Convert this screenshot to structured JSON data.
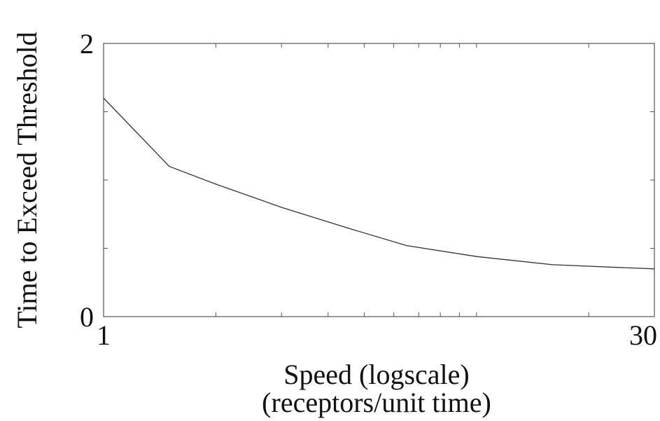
{
  "chart_data": {
    "type": "line",
    "title": "",
    "xlabel_lines": [
      "Speed (logscale)",
      "(receptors/unit time)"
    ],
    "ylabel": "Time to Exceed Threshold",
    "x_scale": "log",
    "xlim": [
      1,
      30
    ],
    "ylim": [
      0,
      2
    ],
    "x_tick_labels": [
      {
        "value": 1,
        "label": "1"
      },
      {
        "value": 30,
        "label": "30"
      }
    ],
    "y_tick_labels": [
      {
        "value": 0,
        "label": "0"
      },
      {
        "value": 2,
        "label": "2"
      }
    ],
    "x_minor_ticks": [
      2,
      3,
      4,
      5,
      6,
      7,
      8,
      9,
      10,
      20
    ],
    "y_minor_ticks": [
      0.5,
      1,
      1.5
    ],
    "grid": false,
    "legend": "none",
    "line_color": "#333333",
    "series": [
      {
        "x": [
          1,
          1.5,
          2,
          3,
          4.5,
          6.5,
          10,
          16,
          24,
          30
        ],
        "y": [
          1.6,
          1.1,
          0.97,
          0.8,
          0.65,
          0.52,
          0.44,
          0.38,
          0.36,
          0.35
        ]
      }
    ]
  }
}
